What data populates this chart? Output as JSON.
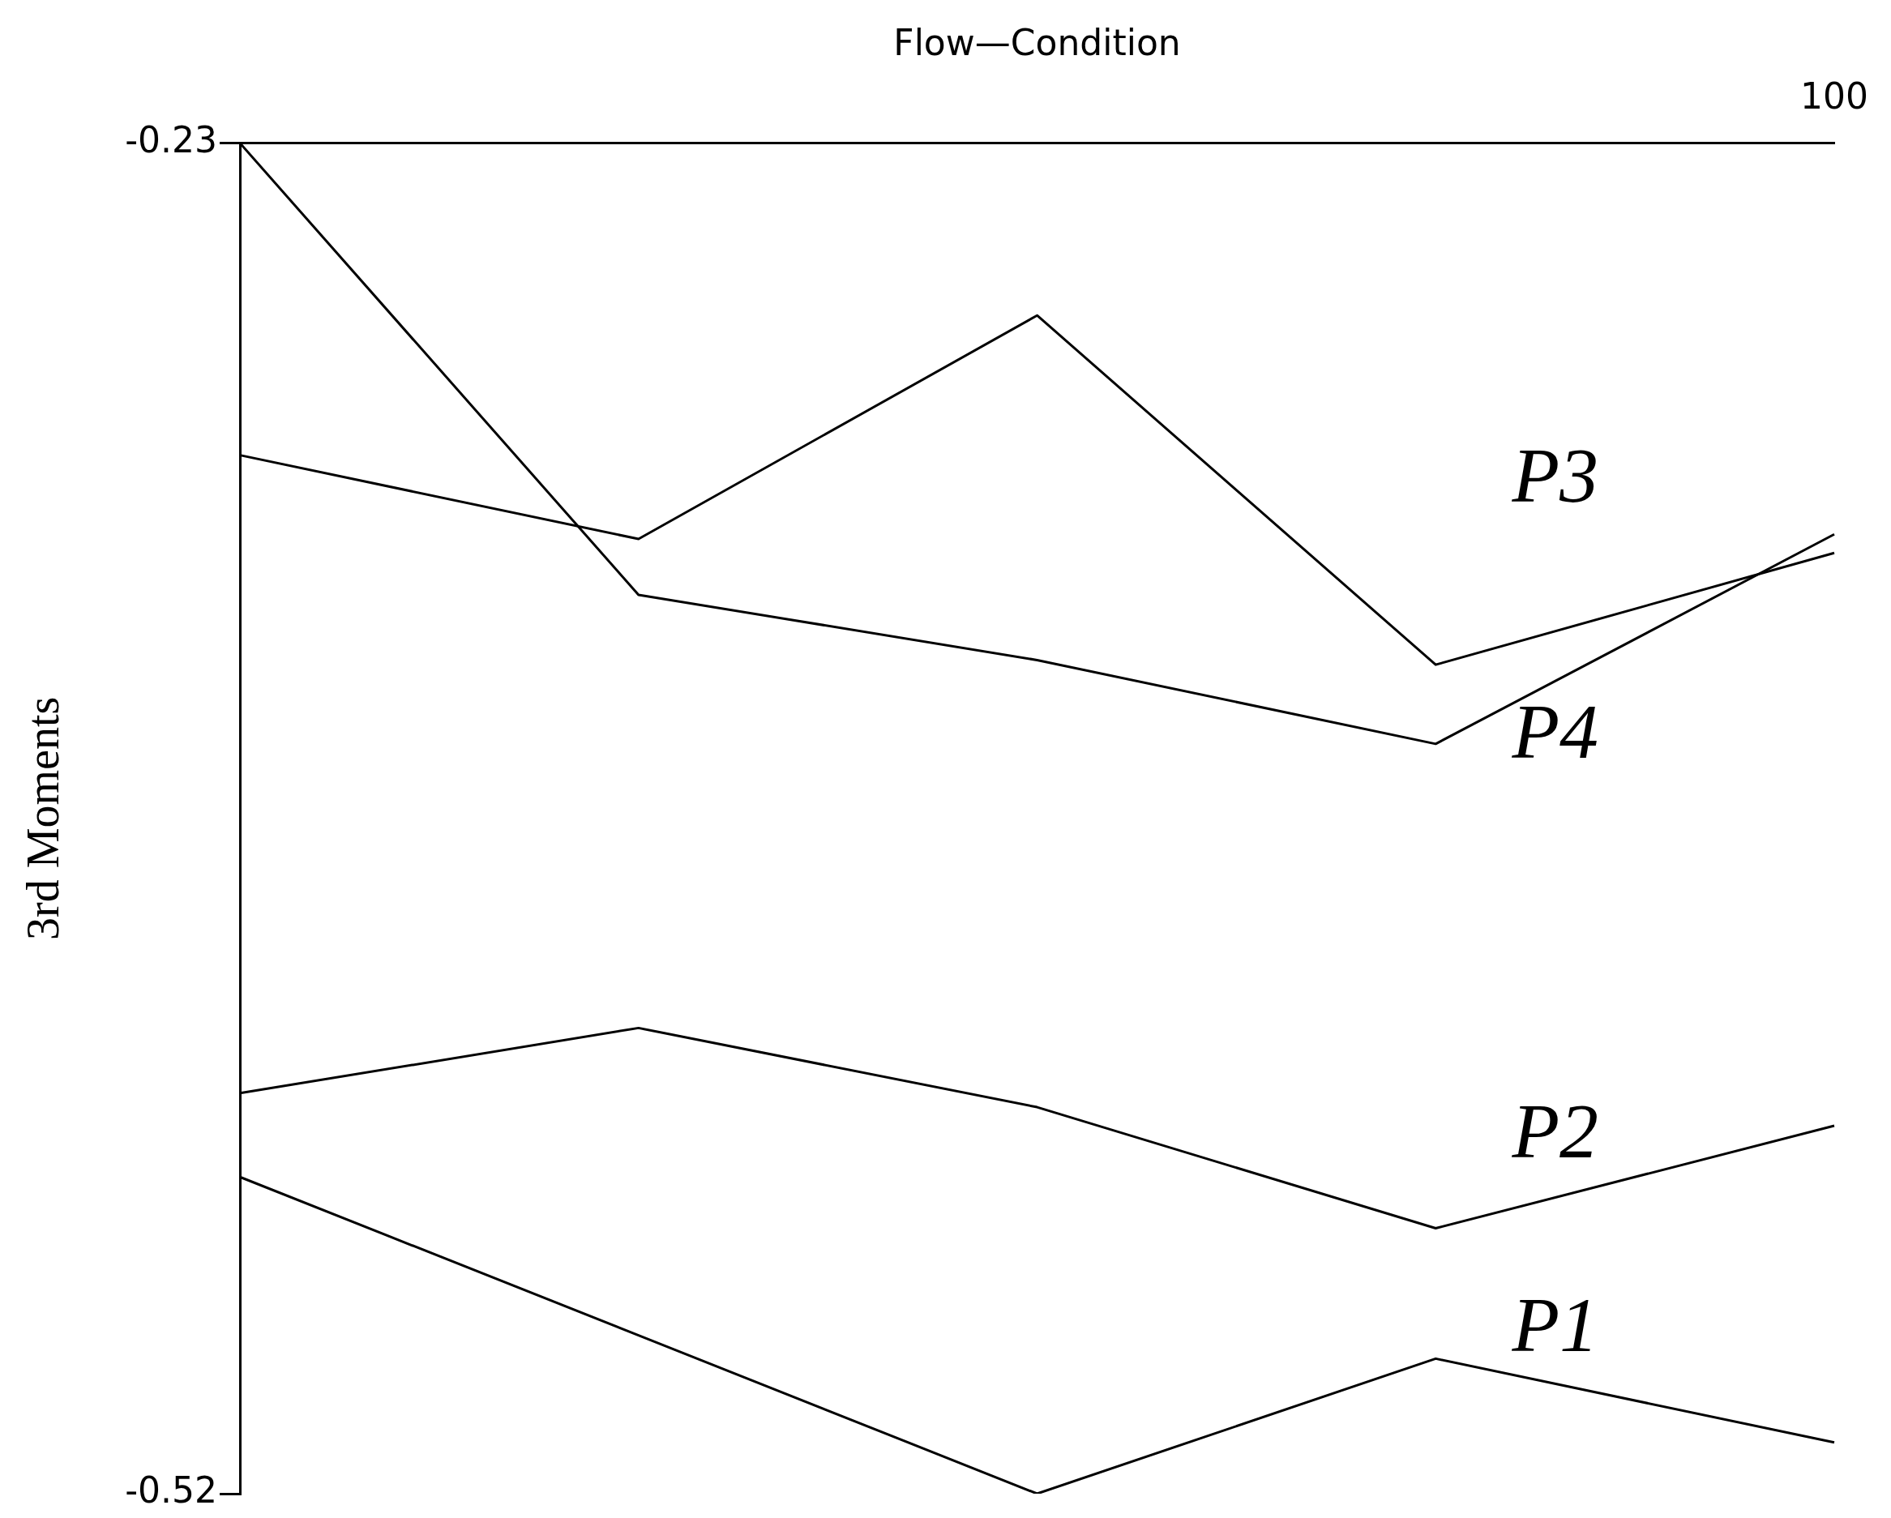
{
  "chart_data": {
    "type": "line",
    "xlabel": "Flow—Condition",
    "ylabel": "3rd Moments",
    "categories": [
      null,
      null,
      null,
      null,
      "100"
    ],
    "series": [
      {
        "name": "P1",
        "color": "#000000",
        "values": [
          -0.452,
          -0.486,
          -0.52,
          -0.491,
          -0.509
        ]
      },
      {
        "name": "P2",
        "color": "#000000",
        "values": [
          -0.434,
          -0.42,
          -0.437,
          -0.463,
          -0.441
        ]
      },
      {
        "name": "P3",
        "color": "#000000",
        "values": [
          -0.297,
          -0.315,
          -0.267,
          -0.342,
          -0.318
        ]
      },
      {
        "name": "P4",
        "color": "#000000",
        "values": [
          -0.23,
          -0.327,
          -0.341,
          -0.359,
          -0.314
        ]
      }
    ],
    "ylim": [
      -0.52,
      -0.23
    ],
    "yticks": [
      -0.23,
      -0.52
    ],
    "grid": false,
    "legend": false
  }
}
